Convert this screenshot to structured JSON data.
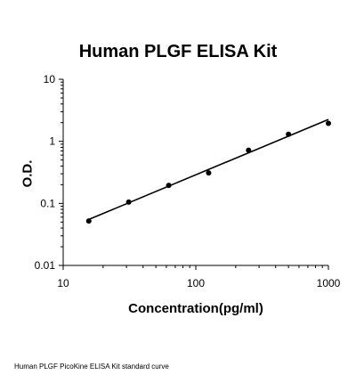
{
  "chart_data": {
    "type": "scatter",
    "title": "Human PLGF ELISA Kit",
    "xlabel": "Concentration(pg/ml)",
    "ylabel": "O.D.",
    "x_scale": "log",
    "y_scale": "log",
    "xlim": [
      10,
      1000
    ],
    "ylim": [
      0.01,
      10
    ],
    "x_ticks": [
      "10",
      "100",
      "1000"
    ],
    "y_ticks": [
      "0.01",
      "0.1",
      "1",
      "10"
    ],
    "grid": false,
    "series": [
      {
        "x": [
          15.6,
          31.2,
          62.5,
          125,
          250,
          500,
          1000
        ],
        "y": [
          0.052,
          0.105,
          0.195,
          0.31,
          0.72,
          1.3,
          1.95
        ]
      }
    ],
    "fit_line": {
      "x": [
        15.6,
        1000
      ],
      "y": [
        0.055,
        2.25
      ]
    },
    "caption": "Human PLGF PicoKine ELISA Kit standard curve"
  }
}
